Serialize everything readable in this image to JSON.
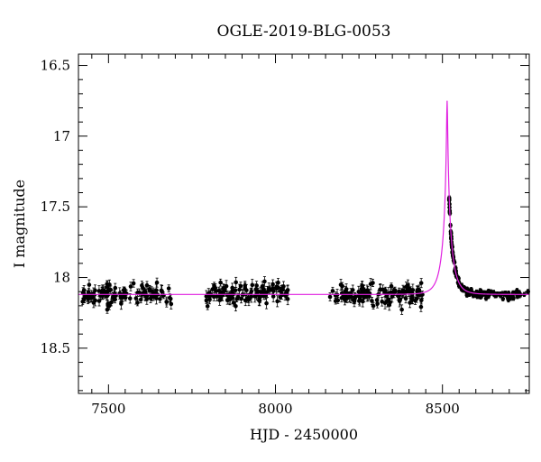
{
  "chart_data": {
    "type": "scatter",
    "title": "OGLE-2019-BLG-0053",
    "xlabel": "HJD - 2450000",
    "ylabel": "I magnitude",
    "xlim": [
      7410,
      8760
    ],
    "ylim": [
      18.82,
      16.42
    ],
    "y_inverted": true,
    "x_major_ticks": [
      7500,
      8000,
      8500
    ],
    "x_tick_labels": [
      "7500",
      "8000",
      "8500"
    ],
    "y_major_ticks": [
      16.5,
      17,
      17.5,
      18,
      18.5
    ],
    "y_tick_labels": [
      "16.5",
      "17",
      "17.5",
      "18",
      "18.5"
    ],
    "grid": false,
    "colors": {
      "data": "#000000",
      "model": "#e020e0"
    },
    "series": [
      {
        "kind": "points_with_errorbars",
        "baseline_mag": 18.12,
        "seasons": [
          {
            "x_range": [
              7420,
              7690
            ],
            "n": 110,
            "mag": 18.12,
            "scatter": 0.035,
            "err": 0.03
          },
          {
            "x_range": [
              7790,
              8040
            ],
            "n": 110,
            "mag": 18.12,
            "scatter": 0.035,
            "err": 0.03
          },
          {
            "x_range": [
              8160,
              8440
            ],
            "n": 120,
            "mag": 18.12,
            "scatter": 0.035,
            "err": 0.03
          }
        ],
        "dense_points": {
          "x_range": [
            8520,
            8760
          ],
          "n": 160,
          "err": 0.015
        }
      },
      {
        "kind": "model_curve",
        "t0": 8514,
        "tE": 28,
        "u0": 0.05,
        "baseline_mag": 18.12,
        "peak_mag": 16.75
      }
    ]
  }
}
